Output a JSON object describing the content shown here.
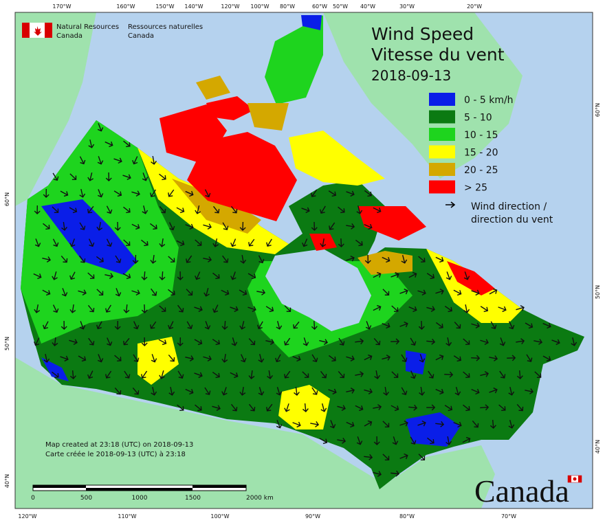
{
  "agency": {
    "en": [
      "Natural Resources",
      "Canada"
    ],
    "fr": [
      "Ressources naturelles",
      "Canada"
    ]
  },
  "title": [
    "Wind Speed",
    "Vitesse du vent"
  ],
  "date": "2018-09-13",
  "legend": {
    "items": [
      {
        "label": "0 - 5 km/h",
        "color": "#0a1ee8"
      },
      {
        "label": "5 - 10",
        "color": "#0b7a12"
      },
      {
        "label": "10 - 15",
        "color": "#1ed41e"
      },
      {
        "label": "15 - 20",
        "color": "#ffff00"
      },
      {
        "label": "20 - 25",
        "color": "#d4a800"
      },
      {
        "label": "> 25",
        "color": "#ff0000"
      }
    ],
    "arrow": [
      "Wind direction /",
      "direction du vent"
    ]
  },
  "graticule": {
    "top": [
      "170°W",
      "160°W",
      "150°W",
      "140°W",
      "120°W",
      "100°W",
      "80°W",
      "60°W",
      "50°W",
      "40°W",
      "30°W",
      "20°W"
    ],
    "bottom": [
      "120°W",
      "110°W",
      "100°W",
      "90°W",
      "80°W",
      "70°W"
    ],
    "left": [
      "60°N",
      "50°N",
      "40°N"
    ],
    "right": [
      "60°N",
      "50°N",
      "40°N"
    ]
  },
  "notes": [
    "Map created at 23:18 (UTC) on 2018-09-13",
    "Carte créée le 2018-09-13 (UTC) à 23:18"
  ],
  "scale": [
    "0",
    "500",
    "1000",
    "1500",
    "2000 km"
  ],
  "wordmark": "Canada"
}
